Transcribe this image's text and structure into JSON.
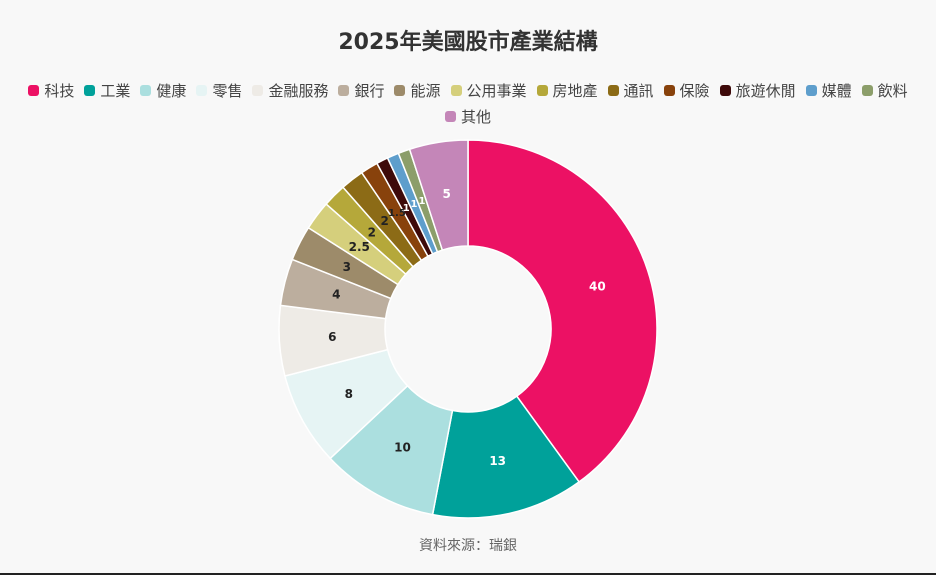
{
  "title": "2025年美國股市產業結構",
  "source": "資料來源：瑞銀",
  "chart_data": {
    "type": "pie",
    "donut": true,
    "title": "2025年美國股市產業結構",
    "legend_position": "top",
    "categories": [
      "科技",
      "工業",
      "健康",
      "零售",
      "金融服務",
      "銀行",
      "能源",
      "公用事業",
      "房地產",
      "通訊",
      "保險",
      "旅遊休閒",
      "媒體",
      "飲料",
      "其他"
    ],
    "values": [
      40,
      13,
      10,
      8,
      6,
      4,
      3,
      2.5,
      2,
      2,
      1.5,
      1,
      1,
      1,
      5
    ],
    "colors": [
      "#ec1164",
      "#00a19a",
      "#abdfdf",
      "#e6f4f4",
      "#eeebe6",
      "#bcae9e",
      "#9d8b6a",
      "#d5cf7c",
      "#b5a83a",
      "#8c6b16",
      "#88420c",
      "#3e0a0a",
      "#5e9ecc",
      "#8c9e6a",
      "#c486b8"
    ],
    "label_colors": [
      "#ffffff",
      "#ffffff",
      "#222222",
      "#222222",
      "#222222",
      "#222222",
      "#222222",
      "#222222",
      "#222222",
      "#222222",
      "#222222",
      "#ffffff",
      "#ffffff",
      "#ffffff",
      "#ffffff"
    ]
  }
}
